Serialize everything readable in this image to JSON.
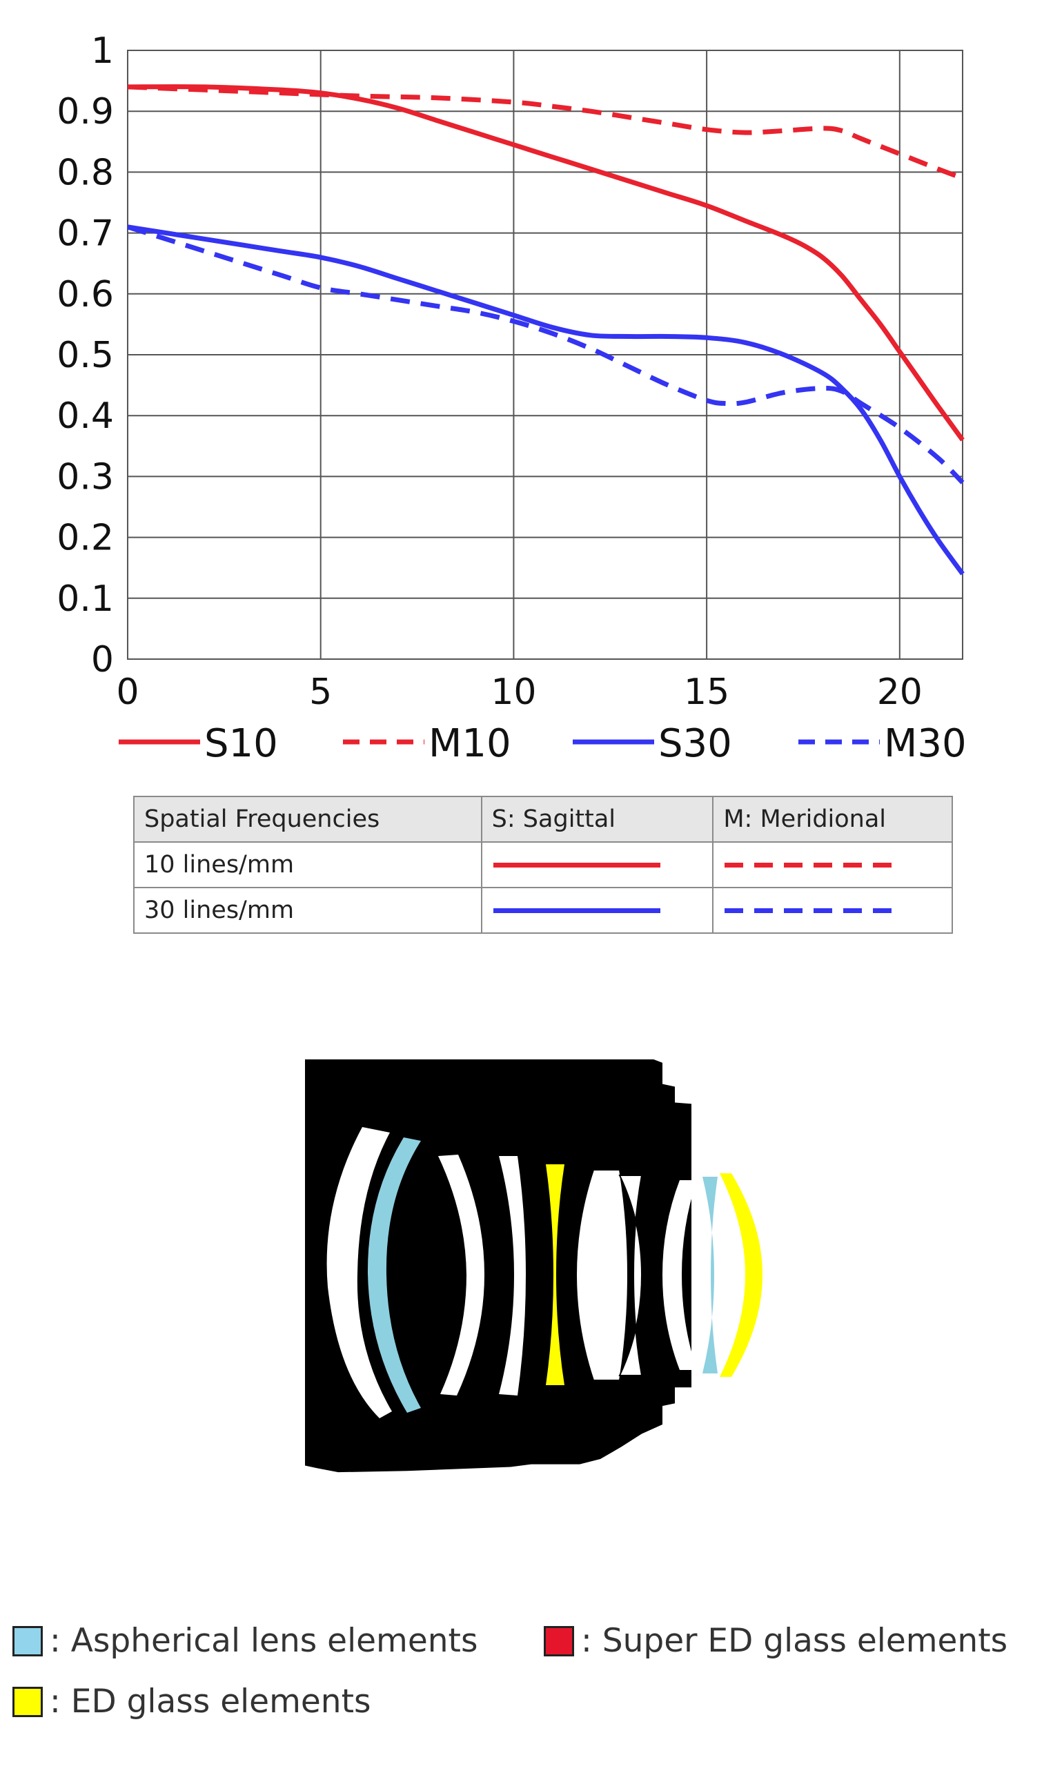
{
  "chart_data": {
    "type": "line",
    "xlim": [
      0,
      21.63
    ],
    "ylim": [
      0,
      1
    ],
    "x_ticks": [
      "0",
      "5",
      "10",
      "15",
      "20"
    ],
    "y_ticks": [
      "0",
      "0.1",
      "0.2",
      "0.3",
      "0.4",
      "0.5",
      "0.6",
      "0.7",
      "0.8",
      "0.9",
      "1"
    ],
    "grid": true,
    "legend_position": "bottom",
    "series": [
      {
        "name": "S10",
        "color": "#e8222e",
        "style": "solid",
        "x": [
          0,
          2,
          4,
          5,
          6,
          7,
          8,
          9,
          10,
          11,
          12,
          13,
          14,
          15,
          16,
          17,
          17.5,
          18,
          18.5,
          19,
          19.5,
          20,
          20.5,
          21,
          21.63
        ],
        "y": [
          0.94,
          0.94,
          0.935,
          0.93,
          0.92,
          0.905,
          0.885,
          0.865,
          0.845,
          0.825,
          0.805,
          0.785,
          0.765,
          0.745,
          0.72,
          0.695,
          0.68,
          0.66,
          0.63,
          0.59,
          0.55,
          0.505,
          0.46,
          0.415,
          0.36
        ]
      },
      {
        "name": "M10",
        "color": "#e8222e",
        "style": "dashed",
        "x": [
          0,
          2,
          4,
          6,
          8,
          10,
          11,
          12,
          13,
          14,
          15,
          16,
          17,
          18,
          18.5,
          19,
          20,
          21,
          21.63
        ],
        "y": [
          0.94,
          0.935,
          0.93,
          0.925,
          0.922,
          0.915,
          0.908,
          0.9,
          0.89,
          0.88,
          0.87,
          0.865,
          0.868,
          0.872,
          0.868,
          0.855,
          0.83,
          0.805,
          0.79
        ]
      },
      {
        "name": "S30",
        "color": "#3434f2",
        "style": "solid",
        "x": [
          0,
          1,
          2,
          3,
          4,
          5,
          6,
          7,
          8,
          9,
          10,
          11,
          12,
          13,
          14,
          15,
          16,
          17,
          18,
          18.5,
          19,
          19.5,
          20,
          20.5,
          21,
          21.63
        ],
        "y": [
          0.71,
          0.7,
          0.69,
          0.68,
          0.67,
          0.66,
          0.645,
          0.625,
          0.605,
          0.585,
          0.565,
          0.545,
          0.532,
          0.53,
          0.53,
          0.528,
          0.52,
          0.5,
          0.47,
          0.445,
          0.41,
          0.36,
          0.3,
          0.245,
          0.195,
          0.14
        ]
      },
      {
        "name": "M30",
        "color": "#3434f2",
        "style": "dashed",
        "x": [
          0,
          1,
          2,
          3,
          4,
          5,
          6,
          7,
          8,
          9,
          10,
          11,
          12,
          13,
          14,
          15,
          15.5,
          16,
          17,
          18,
          18.5,
          19,
          20,
          21,
          21.63
        ],
        "y": [
          0.71,
          0.69,
          0.67,
          0.65,
          0.63,
          0.61,
          0.6,
          0.59,
          0.58,
          0.57,
          0.555,
          0.535,
          0.51,
          0.48,
          0.45,
          0.425,
          0.42,
          0.422,
          0.438,
          0.445,
          0.44,
          0.42,
          0.38,
          0.33,
          0.29
        ]
      }
    ]
  },
  "frequency_table": {
    "headers": [
      "Spatial Frequencies",
      "S: Sagittal",
      "M: Meridional"
    ],
    "rows": [
      {
        "label": "10 lines/mm",
        "color": "#e8222e"
      },
      {
        "label": "30 lines/mm",
        "color": "#3434f2"
      }
    ]
  },
  "lens_diagram": {
    "colors": {
      "body": "#000000",
      "plain_glass": "#ffffff",
      "aspherical": "#8dd0e0",
      "ed_glass": "#ffff00"
    }
  },
  "element_legend": [
    {
      "label": ": Aspherical lens elements",
      "color": "#92d4ec",
      "icon": "aspherical-swatch-icon"
    },
    {
      "label": ": Super ED glass elements",
      "color": "#e5162c",
      "icon": "super-ed-swatch-icon"
    },
    {
      "label": ": ED glass elements",
      "color": "#ffff00",
      "icon": "ed-swatch-icon"
    }
  ]
}
